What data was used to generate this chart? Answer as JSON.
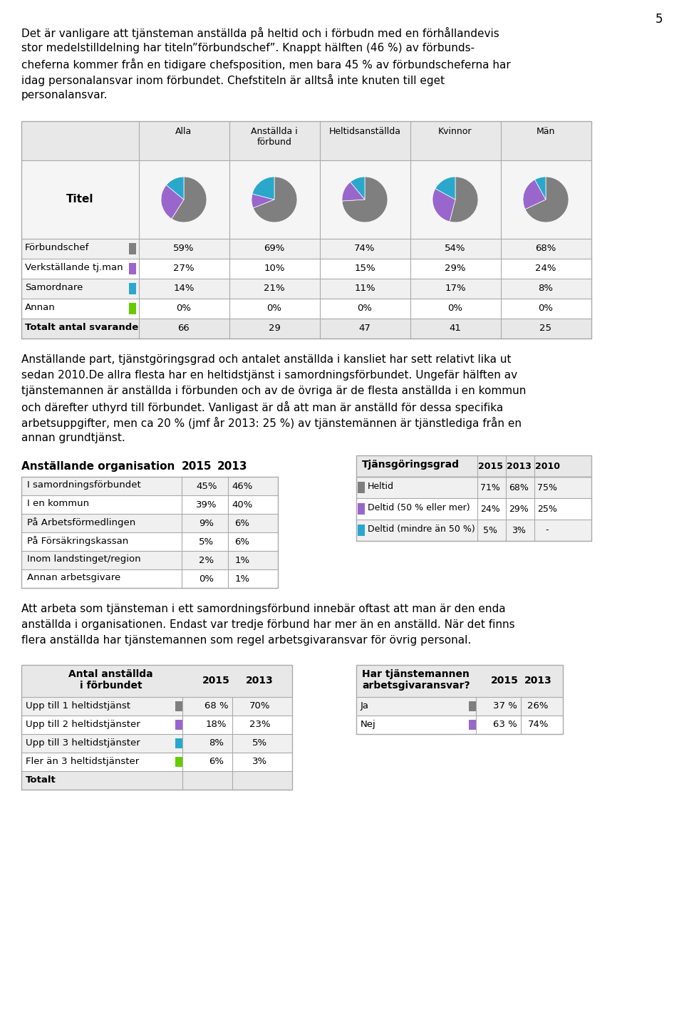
{
  "page_number": "5",
  "para1_lines": [
    "Det är vanligare att tjänsteman anställda på heltid och i förbudn med en förhållandevis",
    "stor medelstilldelning har titeln”förbundschef”. Knappt hälften (46 %) av förbunds-",
    "cheferna kommer från en tidigare chefsposition, men bara 45 % av förbundscheferna har",
    "idag personalansvar inom förbundet. Chefstiteln är alltså inte knuten till eget",
    "personalansvar."
  ],
  "table1_headers": [
    "Alla",
    "Anställda i\nförbund",
    "Heltidsanställda",
    "Kvinnor",
    "Män"
  ],
  "pie_data": {
    "alla": [
      59,
      27,
      14,
      0
    ],
    "anstallda": [
      69,
      10,
      21,
      0
    ],
    "heltid": [
      74,
      15,
      11,
      0
    ],
    "kvinnor": [
      54,
      29,
      17,
      0
    ],
    "man": [
      68,
      24,
      8,
      0
    ]
  },
  "pie_colors": [
    "#7f7f7f",
    "#9966cc",
    "#29a8cc",
    "#66cc00"
  ],
  "table1_rows": [
    [
      "Förbundschef",
      "59%",
      "69%",
      "74%",
      "54%",
      "68%"
    ],
    [
      "Verkställande tj.man",
      "27%",
      "10%",
      "15%",
      "29%",
      "24%"
    ],
    [
      "Samordnare",
      "14%",
      "21%",
      "11%",
      "17%",
      "8%"
    ],
    [
      "Annan",
      "0%",
      "0%",
      "0%",
      "0%",
      "0%"
    ],
    [
      "Totalt antal svarande",
      "66",
      "29",
      "47",
      "41",
      "25"
    ]
  ],
  "row_colors": [
    "#7f7f7f",
    "#9966cc",
    "#29a8cc",
    "#66cc00",
    null
  ],
  "para2_lines": [
    "Anställande part, tjänstgöringsgrad och antalet anställda i kansliet har sett relativt lika ut",
    "sedan 2010.De allra flesta har en heltidstjänst i samordningsförbundet. Ungefär hälften av",
    "tjänstemannen är anställda i förbunden och av de övriga är de flesta anställda i en kommun",
    "och därefter uthyrd till förbundet. Vanligast är då att man är anställd för dessa specifika",
    "arbetsuppgifter, men ca 20 % (jmf år 2013: 25 %) av tjänstemännen är tjänstlediga från en",
    "annan grundtjänst."
  ],
  "org_rows": [
    [
      "I samordningsförbundet",
      "45%",
      "46%"
    ],
    [
      "I en kommun",
      "39%",
      "40%"
    ],
    [
      "På Arbetsförmedlingen",
      "9%",
      "6%"
    ],
    [
      "På Försäkringskassan",
      "5%",
      "6%"
    ],
    [
      "Inom landstinget/region",
      "2%",
      "1%"
    ],
    [
      "Annan arbetsgivare",
      "0%",
      "1%"
    ]
  ],
  "tjg_rows": [
    [
      "Heltid",
      "71%",
      "68%",
      "75%"
    ],
    [
      "Deltid (50 % eller mer)",
      "24%",
      "29%",
      "25%"
    ],
    [
      "Deltid (mindre än 50 %)",
      "5%",
      "3%",
      "-"
    ]
  ],
  "tjg_colors": [
    "#7f7f7f",
    "#9966cc",
    "#29a8cc"
  ],
  "para3_lines": [
    "Att arbeta som tjänsteman i ett samordningsförbund innebär oftast att man är den enda",
    "anställda i organisationen. Endast var tredje förbund har mer än en anställd. När det finns",
    "flera anställda har tjänstemannen som regel arbetsgivaransvar för övrig personal."
  ],
  "antal_rows": [
    [
      "Upp till 1 heltidstjänst",
      "68 %",
      "70%"
    ],
    [
      "Upp till 2 heltidstjänster",
      "18%",
      "23%"
    ],
    [
      "Upp till 3 heltidstjänster",
      "8%",
      "5%"
    ],
    [
      "Fler än 3 heltidstjänster",
      "6%",
      "3%"
    ],
    [
      "Totalt",
      "",
      ""
    ]
  ],
  "antal_colors": [
    "#7f7f7f",
    "#9966cc",
    "#29a8cc",
    "#66cc00",
    null
  ],
  "har_rows": [
    [
      "Ja",
      "37 %",
      "26%"
    ],
    [
      "Nej",
      "63 %",
      "74%"
    ]
  ],
  "har_colors": [
    "#7f7f7f",
    "#9966cc"
  ]
}
